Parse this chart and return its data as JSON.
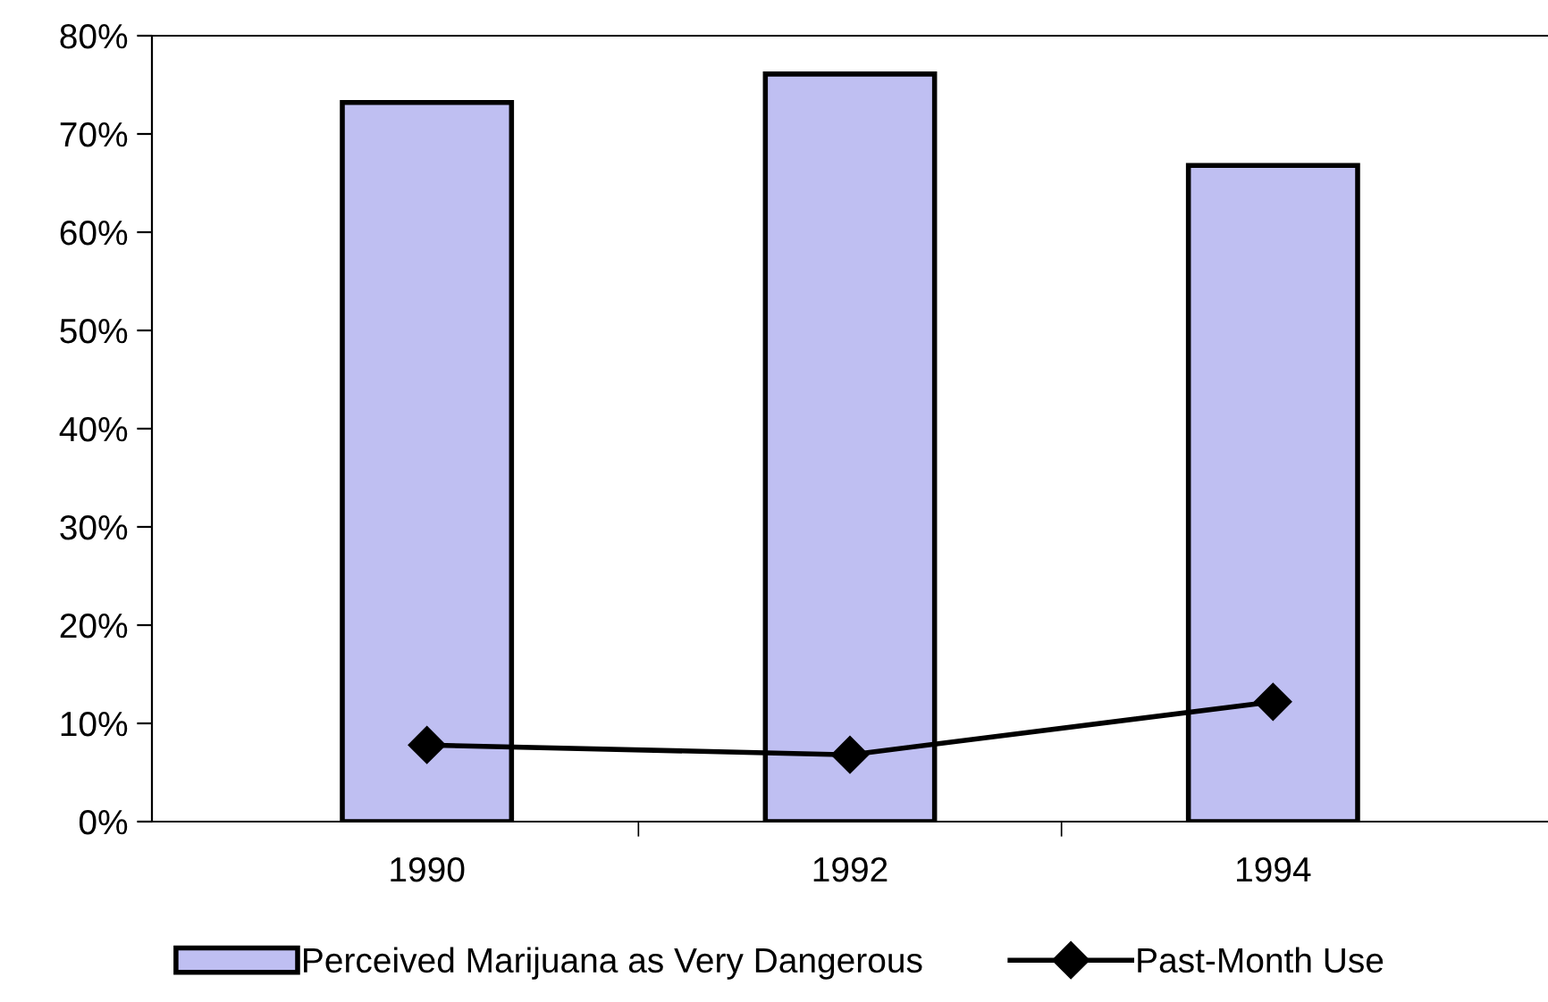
{
  "chart_data": {
    "type": "bar",
    "categories": [
      "1990",
      "1992",
      "1994"
    ],
    "series": [
      {
        "name": "Perceived Marijuana as Very Dangerous",
        "color": "#bfbff2",
        "values": [
          73.2,
          76.1,
          66.8
        ]
      },
      {
        "name": "Past-Month Use",
        "type": "line",
        "color": "#000000",
        "values": [
          7.8,
          6.8,
          12.2
        ],
        "marker": "diamond",
        "line_style": "solid"
      }
    ],
    "ylim": [
      0,
      80
    ],
    "yticks": [
      {
        "value": 0,
        "label": "0%"
      },
      {
        "value": 10,
        "label": "10%"
      },
      {
        "value": 20,
        "label": "20%"
      },
      {
        "value": 30,
        "label": "30%"
      },
      {
        "value": 40,
        "label": "40%"
      },
      {
        "value": 50,
        "label": "50%"
      },
      {
        "value": 60,
        "label": "60%"
      },
      {
        "value": 70,
        "label": "70%"
      },
      {
        "value": 80,
        "label": "80%"
      }
    ],
    "grid": false,
    "legend": "bottom"
  }
}
